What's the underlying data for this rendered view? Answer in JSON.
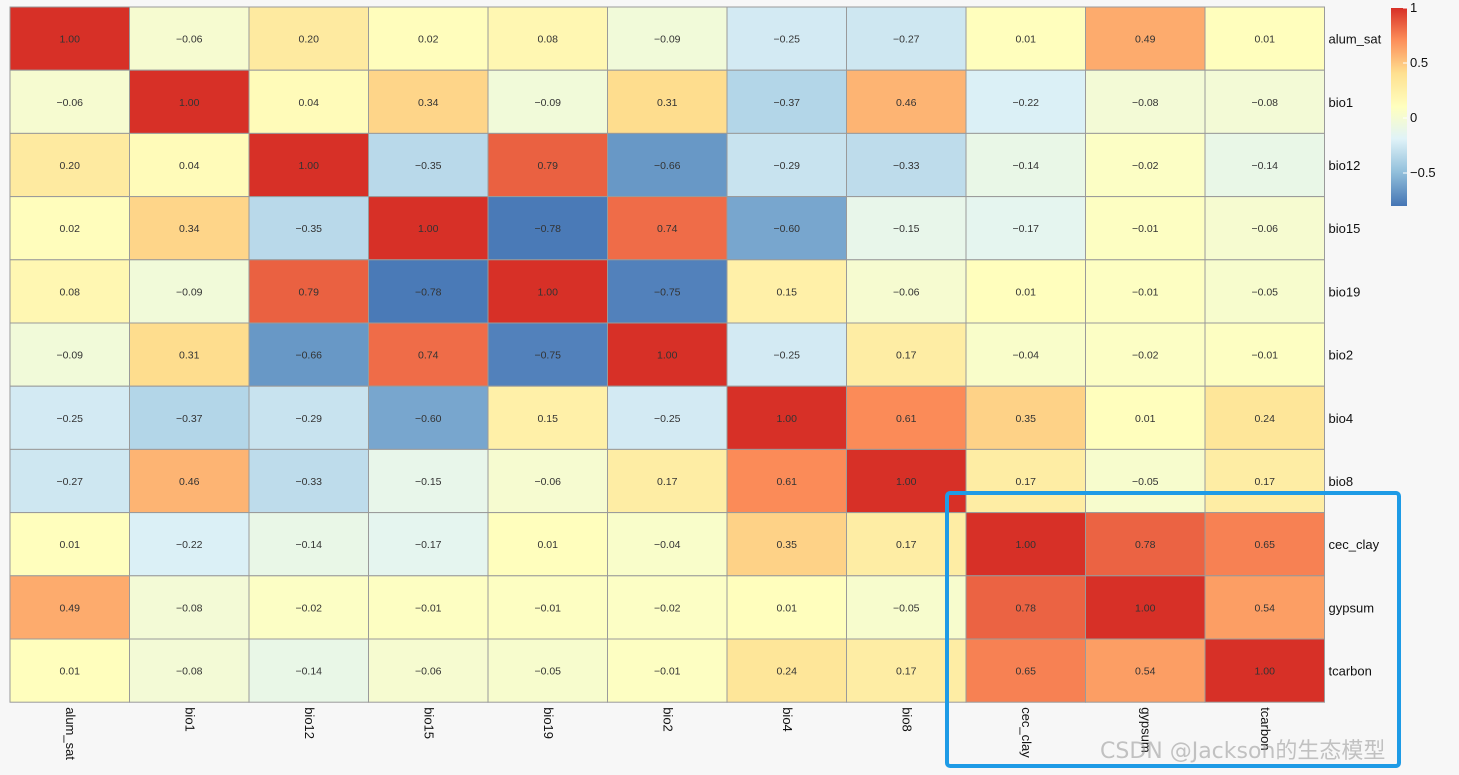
{
  "chart_data": {
    "type": "heatmap",
    "title": "",
    "variables": [
      "alum_sat",
      "bio1",
      "bio12",
      "bio15",
      "bio19",
      "bio2",
      "bio4",
      "bio8",
      "cec_clay",
      "gypsum",
      "tcarbon"
    ],
    "matrix": [
      [
        1.0,
        -0.06,
        0.2,
        0.02,
        0.08,
        -0.09,
        -0.25,
        -0.27,
        0.01,
        0.49,
        0.01
      ],
      [
        -0.06,
        1.0,
        0.04,
        0.34,
        -0.09,
        0.31,
        -0.37,
        0.46,
        -0.22,
        -0.08,
        -0.08
      ],
      [
        0.2,
        0.04,
        1.0,
        -0.35,
        0.79,
        -0.66,
        -0.29,
        -0.33,
        -0.14,
        -0.02,
        -0.14
      ],
      [
        0.02,
        0.34,
        -0.35,
        1.0,
        -0.78,
        0.74,
        -0.6,
        -0.15,
        -0.17,
        -0.01,
        -0.06
      ],
      [
        0.08,
        -0.09,
        0.79,
        -0.78,
        1.0,
        -0.75,
        0.15,
        -0.06,
        0.01,
        -0.01,
        -0.05
      ],
      [
        -0.09,
        0.31,
        -0.66,
        0.74,
        -0.75,
        1.0,
        -0.25,
        0.17,
        -0.04,
        -0.02,
        -0.01
      ],
      [
        -0.25,
        -0.37,
        -0.29,
        -0.6,
        0.15,
        -0.25,
        1.0,
        0.61,
        0.35,
        0.01,
        0.24
      ],
      [
        -0.27,
        0.46,
        -0.33,
        -0.15,
        -0.06,
        0.17,
        0.61,
        1.0,
        0.17,
        -0.05,
        0.17
      ],
      [
        0.01,
        -0.22,
        -0.14,
        -0.17,
        0.01,
        -0.04,
        0.35,
        0.17,
        1.0,
        0.78,
        0.65
      ],
      [
        0.49,
        -0.08,
        -0.02,
        -0.01,
        -0.01,
        -0.02,
        0.01,
        -0.05,
        0.78,
        1.0,
        0.54
      ],
      [
        0.01,
        -0.08,
        -0.14,
        -0.06,
        -0.05,
        -0.01,
        0.24,
        0.17,
        0.65,
        0.54,
        1.0
      ]
    ],
    "value_range": [
      -0.8,
      1
    ],
    "legend": {
      "ticks": [
        1,
        0.5,
        0,
        -0.5
      ],
      "tick_labels": [
        "1",
        "0.5",
        "0",
        "−0.5"
      ],
      "placement": "top-right"
    },
    "color_scale": [
      "#4575b4",
      "#91bfdb",
      "#e0f3f8",
      "#ffffbf",
      "#fee090",
      "#fc8d59",
      "#d73027"
    ],
    "highlight": {
      "variables": [
        "cec_clay",
        "gypsum",
        "tcarbon"
      ],
      "color": "#1e9be6"
    },
    "cell_border_color": "#9a9a9a"
  },
  "watermark": "CSDN @Jackson的生态模型"
}
